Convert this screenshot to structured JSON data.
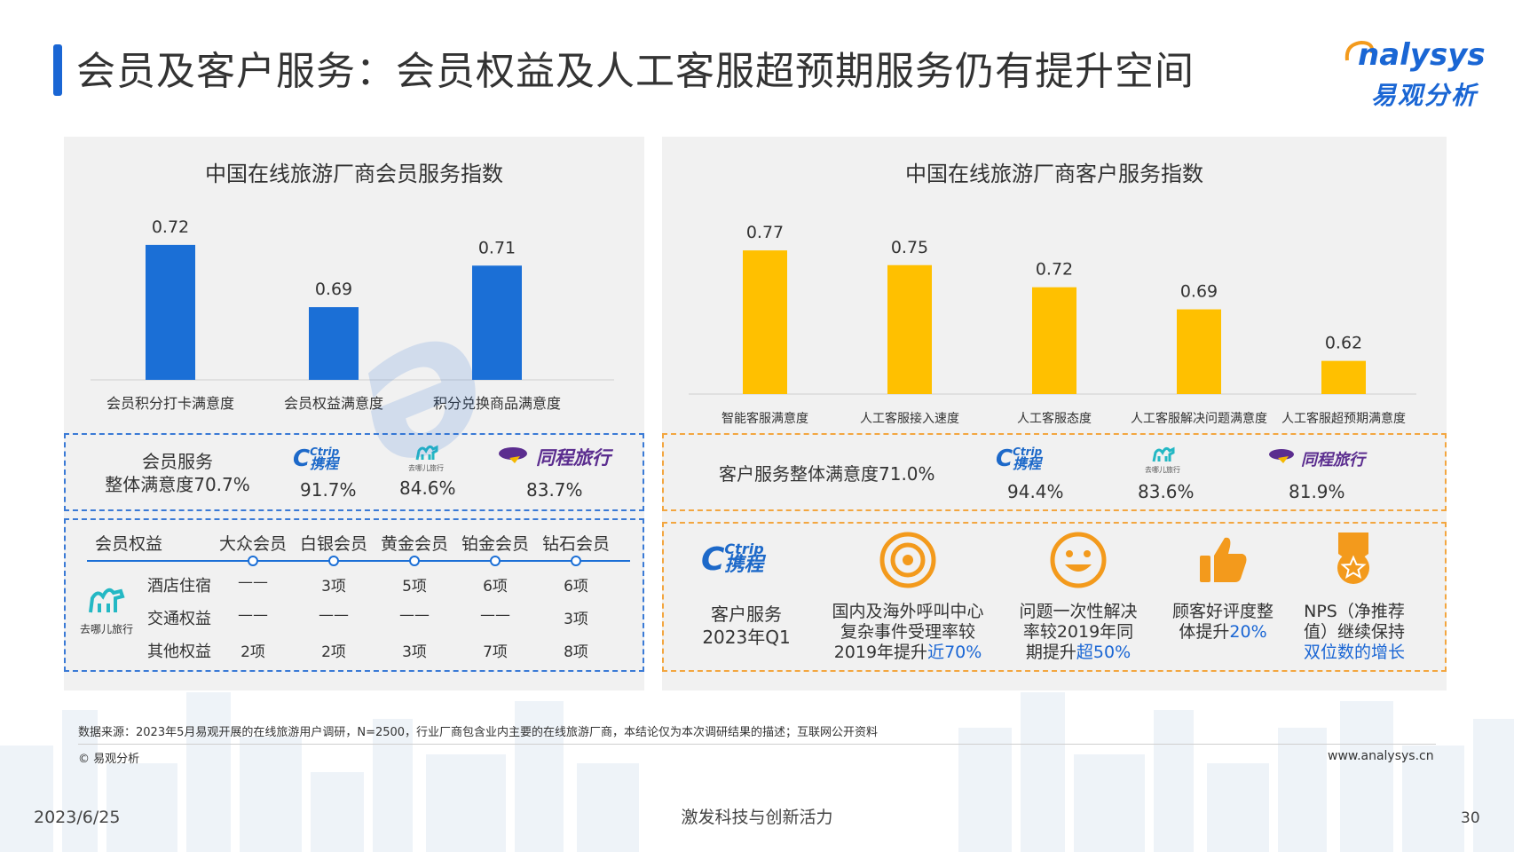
{
  "header": {
    "title": "会员及客户服务：会员权益及人工客服超预期服务仍有提升空间",
    "logo_en": "nalysys",
    "logo_cn": "易观分析"
  },
  "left_chart": {
    "title": "中国在线旅游厂商会员服务指数",
    "chart_data": {
      "type": "bar",
      "categories": [
        "会员积分打卡满意度",
        "会员权益满意度",
        "积分兑换商品满意度"
      ],
      "values": [
        0.72,
        0.69,
        0.71
      ],
      "value_labels": [
        "0.72",
        "0.69",
        "0.71"
      ],
      "title": "中国在线旅游厂商会员服务指数",
      "color": "#1b6fd6"
    }
  },
  "right_chart": {
    "title": "中国在线旅游厂商客户服务指数",
    "chart_data": {
      "type": "bar",
      "categories": [
        "智能客服满意度",
        "人工客服接入速度",
        "人工客服态度",
        "人工客服解决问题满意度",
        "人工客服超预期满意度"
      ],
      "values": [
        0.77,
        0.75,
        0.72,
        0.69,
        0.62
      ],
      "value_labels": [
        "0.77",
        "0.75",
        "0.72",
        "0.69",
        "0.62"
      ],
      "title": "中国在线旅游厂商客户服务指数",
      "color": "#ffc000"
    }
  },
  "member_satisfaction": {
    "label_line1": "会员服务",
    "label_line2": "整体满意度70.7%",
    "brands": [
      {
        "name": "Ctrip携程",
        "logo_en": "Ctrip",
        "logo_cn": "携程",
        "value": "91.7%"
      },
      {
        "name": "去哪儿旅行",
        "logo_cn": "去哪儿旅行",
        "value": "84.6%"
      },
      {
        "name": "同程旅行",
        "logo_cn": "同程旅行",
        "value": "83.7%"
      }
    ]
  },
  "member_rights": {
    "header": "会员权益",
    "tiers": [
      "大众会员",
      "白银会员",
      "黄金会员",
      "铂金会员",
      "钻石会员"
    ],
    "brand": "去哪儿旅行",
    "rows": [
      {
        "label": "酒店住宿",
        "cells": [
          "——",
          "3项",
          "5项",
          "6项",
          "6项"
        ]
      },
      {
        "label": "交通权益",
        "cells": [
          "——",
          "——",
          "——",
          "——",
          "3项"
        ]
      },
      {
        "label": "其他权益",
        "cells": [
          "2项",
          "2项",
          "3项",
          "7项",
          "8项"
        ]
      }
    ]
  },
  "customer_satisfaction": {
    "label": "客户服务整体满意度71.0%",
    "brands": [
      {
        "name": "Ctrip携程",
        "logo_en": "Ctrip",
        "logo_cn": "携程",
        "value": "94.4%"
      },
      {
        "name": "去哪儿旅行",
        "logo_cn": "去哪儿旅行",
        "value": "83.6%"
      },
      {
        "name": "同程旅行",
        "logo_cn": "同程旅行",
        "value": "81.9%"
      }
    ]
  },
  "ctrip_service": {
    "logo_en": "Ctrip",
    "logo_cn": "携程",
    "label_line1": "客户服务",
    "label_line2": "2023年Q1",
    "items": [
      {
        "icon": "target-icon",
        "line1": "国内及海外呼叫中心",
        "line2": "复杂事件受理率较",
        "line3_prefix": "2019年提升",
        "line3_highlight": "近70%"
      },
      {
        "icon": "smiley-icon",
        "line1": "问题一次性解决",
        "line2": "率较2019年同",
        "line3_prefix": "期提升",
        "line3_highlight": "超50%"
      },
      {
        "icon": "thumbs-up-icon",
        "line1": "顾客好评度整",
        "line2": "体提升",
        "line2_highlight": "20%"
      },
      {
        "icon": "medal-icon",
        "line1": "NPS（净推荐",
        "line2": "值）继续保持",
        "line3_highlight": "双位数的增长"
      }
    ]
  },
  "footer": {
    "source": "数据来源：2023年5月易观开展的在线旅游用户调研，N=2500，行业厂商包含业内主要的在线旅游厂商，本结论仅为本次调研结果的描述；互联网公开资料",
    "copyright": "© 易观分析",
    "website": "www.analysys.cn",
    "date": "2023/6/25",
    "slogan": "激发科技与创新活力",
    "page": "30"
  },
  "colors": {
    "blue": "#1b6fd6",
    "yellow": "#ffc000",
    "orange_border": "#f3a640",
    "blue_border": "#3a7ad6"
  }
}
